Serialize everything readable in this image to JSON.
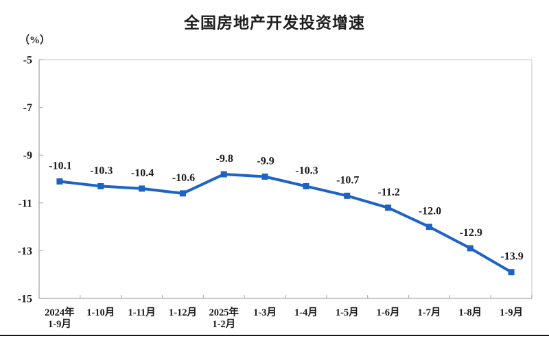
{
  "chart_data": {
    "type": "line",
    "title": "全国房地产开发投资增速",
    "ylabel": "（%）",
    "categories": [
      [
        "2024年",
        "1-9月"
      ],
      [
        "1-10月"
      ],
      [
        "1-11月"
      ],
      [
        "1-12月"
      ],
      [
        "2025年",
        "1-2月"
      ],
      [
        "1-3月"
      ],
      [
        "1-4月"
      ],
      [
        "1-5月"
      ],
      [
        "1-6月"
      ],
      [
        "1-7月"
      ],
      [
        "1-8月"
      ],
      [
        "1-9月"
      ]
    ],
    "values": [
      -10.1,
      -10.3,
      -10.4,
      -10.6,
      -9.8,
      -9.9,
      -10.3,
      -10.7,
      -11.2,
      -12.0,
      -12.9,
      -13.9
    ],
    "data_labels": [
      "-10.1",
      "-10.3",
      "-10.4",
      "-10.6",
      "-9.8",
      "-9.9",
      "-10.3",
      "-10.7",
      "-11.2",
      "-12.0",
      "-12.9",
      "-13.9"
    ],
    "yticks": [
      "-5",
      "-7",
      "-9",
      "-11",
      "-13",
      "-15"
    ],
    "ytick_values": [
      -5,
      -7,
      -9,
      -11,
      -13,
      -15
    ],
    "ylim": [
      -15,
      -5
    ],
    "grid": false,
    "legend": "none",
    "colors": {
      "line": "#1b63c9",
      "marker": "#1b63c9",
      "axis": "#b3b3b3",
      "plot_border": "#d9d9d9",
      "text": "#1a1a1a",
      "bottom_rule": "#1a1a1a"
    }
  }
}
